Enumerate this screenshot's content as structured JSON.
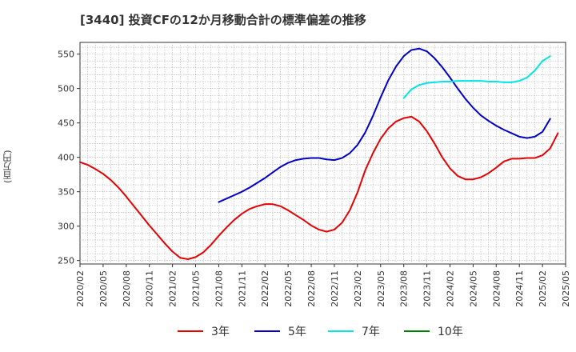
{
  "title": "[3440]  投資CFの12か月移動合計の標準偏差の推移",
  "unit_label": "(百万円)",
  "chart_data": {
    "type": "line",
    "title": "[3440]  投資CFの12か月移動合計の標準偏差の推移",
    "ylabel": "(百万円)",
    "ylim": [
      245,
      567
    ],
    "yticks": [
      250,
      300,
      350,
      400,
      450,
      500,
      550
    ],
    "xticks": [
      "2020/02",
      "2020/05",
      "2020/08",
      "2020/11",
      "2021/02",
      "2021/05",
      "2021/08",
      "2021/11",
      "2022/02",
      "2022/05",
      "2022/08",
      "2022/11",
      "2023/02",
      "2023/05",
      "2023/08",
      "2023/11",
      "2024/02",
      "2024/05",
      "2024/08",
      "2024/11",
      "2025/02",
      "2025/05"
    ],
    "x_start": "2020/02",
    "grid": true,
    "legend_position": "bottom",
    "series": [
      {
        "name": "3年",
        "color": "#e60000",
        "start": "2020/02",
        "values": [
          393,
          389,
          383,
          376,
          367,
          356,
          343,
          329,
          315,
          301,
          288,
          275,
          263,
          254,
          252,
          255,
          262,
          273,
          286,
          298,
          309,
          318,
          325,
          329,
          332,
          332,
          329,
          323,
          316,
          309,
          301,
          295,
          292,
          295,
          305,
          323,
          349,
          381,
          406,
          427,
          442,
          452,
          457,
          459,
          452,
          438,
          420,
          400,
          384,
          373,
          368,
          368,
          371,
          377,
          385,
          394,
          398,
          398,
          399,
          399,
          403,
          413,
          435
        ]
      },
      {
        "name": "5年",
        "color": "#0000c8",
        "start": "2021/08",
        "values": [
          335,
          340,
          345,
          350,
          356,
          363,
          370,
          378,
          386,
          392,
          396,
          398,
          399,
          399,
          397,
          396,
          399,
          406,
          418,
          436,
          460,
          487,
          512,
          532,
          547,
          556,
          558,
          554,
          544,
          531,
          516,
          500,
          485,
          472,
          461,
          453,
          446,
          440,
          435,
          430,
          428,
          430,
          437,
          456
        ]
      },
      {
        "name": "7年",
        "color": "#00e6e6",
        "start": "2023/08",
        "values": [
          486,
          499,
          505,
          508,
          509,
          510,
          510,
          511,
          511,
          511,
          511,
          510,
          510,
          509,
          509,
          511,
          516,
          526,
          540,
          547
        ]
      },
      {
        "name": "10年",
        "color": "#008000",
        "start": "2020/02",
        "values": []
      }
    ]
  }
}
